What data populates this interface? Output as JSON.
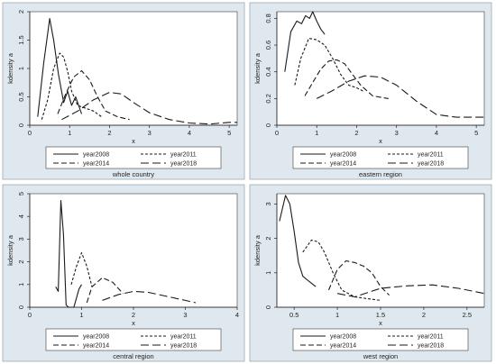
{
  "chart_data": [
    {
      "type": "line",
      "title": "",
      "caption": "whole country",
      "xlabel": "x",
      "ylabel": "kdensity a",
      "xlim": [
        0,
        5.2
      ],
      "ylim": [
        0,
        2.0
      ],
      "xticks": [
        0,
        1,
        2,
        3,
        4,
        5
      ],
      "yticks": [
        0,
        0.5,
        1,
        1.5,
        2
      ],
      "grid": true,
      "legend_position": "below",
      "series": [
        {
          "name": "year2008",
          "dash": "solid",
          "x": [
            0.2,
            0.35,
            0.5,
            0.6,
            0.72,
            0.85,
            0.95,
            1.05,
            1.15,
            1.3
          ],
          "y": [
            0.15,
            1.1,
            1.88,
            1.5,
            0.9,
            0.4,
            0.6,
            0.35,
            0.5,
            0.2
          ]
        },
        {
          "name": "year2011",
          "dash": "short",
          "x": [
            0.3,
            0.45,
            0.6,
            0.75,
            0.85,
            0.95,
            1.05,
            1.2,
            1.4,
            1.6,
            1.8
          ],
          "y": [
            0.1,
            0.45,
            1.0,
            1.27,
            1.2,
            0.95,
            0.6,
            0.35,
            0.3,
            0.25,
            0.15
          ]
        },
        {
          "name": "year2014",
          "dash": "long",
          "x": [
            0.7,
            0.9,
            1.1,
            1.3,
            1.5,
            1.7,
            1.9,
            2.2,
            2.5
          ],
          "y": [
            0.2,
            0.55,
            0.85,
            0.96,
            0.8,
            0.5,
            0.25,
            0.15,
            0.1
          ]
        },
        {
          "name": "year2018",
          "dash": "longdash",
          "x": [
            0.8,
            1.2,
            1.6,
            2.0,
            2.3,
            2.6,
            3.0,
            3.5,
            4.0,
            4.5,
            5.0,
            5.2
          ],
          "y": [
            0.1,
            0.25,
            0.45,
            0.58,
            0.55,
            0.4,
            0.22,
            0.1,
            0.04,
            0.02,
            0.05,
            0.05
          ]
        }
      ]
    },
    {
      "type": "line",
      "title": "",
      "caption": "eastern region",
      "xlabel": "x",
      "ylabel": "kdensity a",
      "xlim": [
        0,
        5.2
      ],
      "ylim": [
        0,
        0.85
      ],
      "xticks": [
        0,
        1,
        2,
        3,
        4,
        5
      ],
      "yticks": [
        0,
        0.2,
        0.4,
        0.6,
        0.8
      ],
      "grid": true,
      "legend_position": "below",
      "series": [
        {
          "name": "year2008",
          "dash": "solid",
          "x": [
            0.2,
            0.35,
            0.5,
            0.62,
            0.72,
            0.82,
            0.9,
            1.0,
            1.1,
            1.2
          ],
          "y": [
            0.4,
            0.7,
            0.78,
            0.76,
            0.82,
            0.8,
            0.85,
            0.78,
            0.72,
            0.68
          ]
        },
        {
          "name": "year2011",
          "dash": "short",
          "x": [
            0.45,
            0.6,
            0.8,
            1.0,
            1.2,
            1.4,
            1.6,
            1.8,
            2.0,
            2.2
          ],
          "y": [
            0.3,
            0.5,
            0.65,
            0.64,
            0.6,
            0.5,
            0.38,
            0.3,
            0.28,
            0.25
          ]
        },
        {
          "name": "year2014",
          "dash": "long",
          "x": [
            0.7,
            0.9,
            1.1,
            1.3,
            1.5,
            1.7,
            1.9,
            2.1,
            2.4,
            2.8
          ],
          "y": [
            0.22,
            0.32,
            0.42,
            0.48,
            0.49,
            0.46,
            0.38,
            0.3,
            0.22,
            0.2
          ]
        },
        {
          "name": "year2018",
          "dash": "longdash",
          "x": [
            1.0,
            1.4,
            1.8,
            2.2,
            2.6,
            3.0,
            3.5,
            4.0,
            4.5,
            5.0,
            5.2
          ],
          "y": [
            0.2,
            0.26,
            0.33,
            0.37,
            0.36,
            0.3,
            0.18,
            0.08,
            0.06,
            0.06,
            0.06
          ]
        }
      ]
    },
    {
      "type": "line",
      "title": "",
      "caption": "central region",
      "xlabel": "x",
      "ylabel": "kdensity a",
      "xlim": [
        0,
        4
      ],
      "ylim": [
        0,
        5
      ],
      "xticks": [
        0,
        1,
        2,
        3,
        4
      ],
      "yticks": [
        0,
        1,
        2,
        3,
        4,
        5
      ],
      "grid": true,
      "legend_position": "below",
      "series": [
        {
          "name": "year2008",
          "dash": "solid",
          "x": [
            0.5,
            0.55,
            0.6,
            0.65,
            0.7,
            0.75,
            0.85,
            0.95,
            1.0
          ],
          "y": [
            0.9,
            0.7,
            4.7,
            3.2,
            0.1,
            0.0,
            0.0,
            0.8,
            1.0
          ]
        },
        {
          "name": "year2011",
          "dash": "short",
          "x": [
            0.8,
            0.9,
            1.0,
            1.1,
            1.2
          ],
          "y": [
            1.0,
            1.8,
            2.4,
            1.8,
            0.9
          ]
        },
        {
          "name": "year2014",
          "dash": "long",
          "x": [
            1.1,
            1.2,
            1.4,
            1.6,
            1.8
          ],
          "y": [
            0.2,
            0.9,
            1.3,
            1.1,
            0.6
          ]
        },
        {
          "name": "year2018",
          "dash": "longdash",
          "x": [
            1.4,
            1.7,
            2.0,
            2.3,
            2.6,
            3.0,
            3.2
          ],
          "y": [
            0.3,
            0.55,
            0.7,
            0.65,
            0.5,
            0.3,
            0.2
          ]
        }
      ]
    },
    {
      "type": "line",
      "title": "",
      "caption": "west region",
      "xlabel": "x",
      "ylabel": "kdensity a",
      "xlim": [
        0.3,
        2.7
      ],
      "ylim": [
        0,
        3.3
      ],
      "xticks": [
        0.5,
        1,
        1.5,
        2,
        2.5
      ],
      "yticks": [
        0,
        1,
        2,
        3
      ],
      "grid": true,
      "legend_position": "below",
      "series": [
        {
          "name": "year2008",
          "dash": "solid",
          "x": [
            0.33,
            0.4,
            0.45,
            0.5,
            0.55,
            0.6,
            0.65,
            0.7,
            0.75
          ],
          "y": [
            2.5,
            3.25,
            3.0,
            2.2,
            1.3,
            0.9,
            0.8,
            0.7,
            0.6
          ]
        },
        {
          "name": "year2011",
          "dash": "short",
          "x": [
            0.6,
            0.7,
            0.78,
            0.85,
            0.95,
            1.05,
            1.2,
            1.35,
            1.5
          ],
          "y": [
            1.6,
            1.95,
            1.9,
            1.6,
            1.0,
            0.5,
            0.3,
            0.25,
            0.2
          ]
        },
        {
          "name": "year2014",
          "dash": "long",
          "x": [
            0.9,
            1.0,
            1.1,
            1.2,
            1.3,
            1.4,
            1.5,
            1.6
          ],
          "y": [
            0.5,
            1.1,
            1.35,
            1.3,
            1.2,
            1.0,
            0.6,
            0.35
          ]
        },
        {
          "name": "year2018",
          "dash": "longdash",
          "x": [
            1.0,
            1.2,
            1.5,
            1.8,
            2.1,
            2.4,
            2.7
          ],
          "y": [
            0.4,
            0.3,
            0.55,
            0.62,
            0.65,
            0.55,
            0.4
          ]
        }
      ]
    }
  ]
}
